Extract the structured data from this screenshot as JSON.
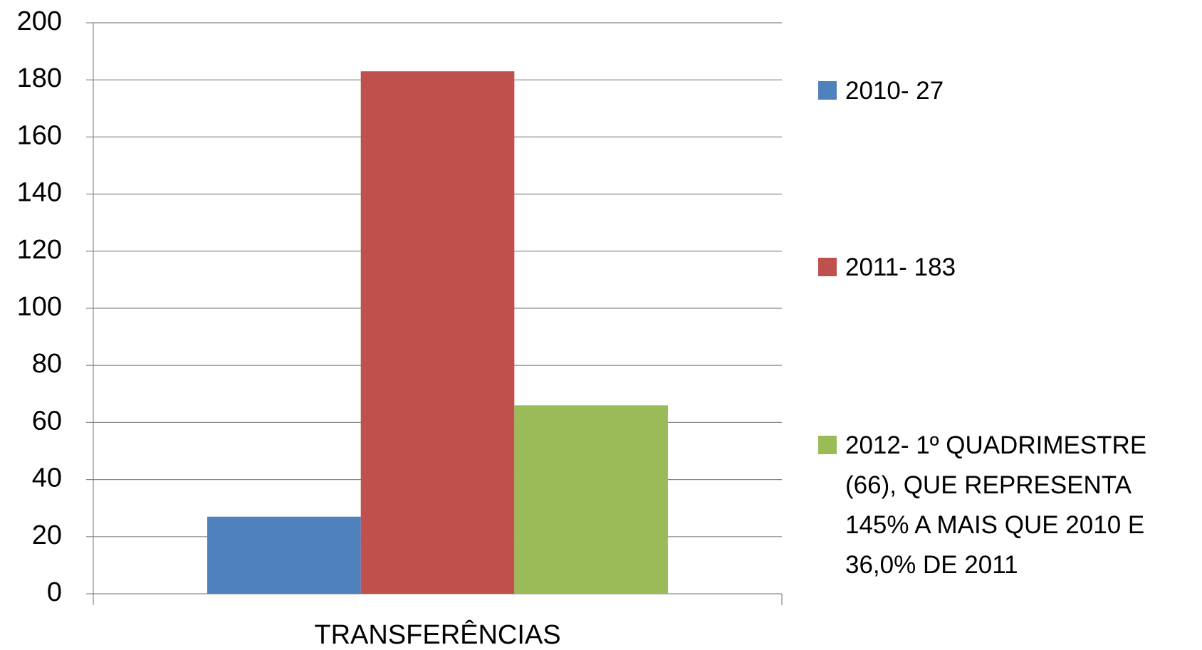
{
  "chart_data": {
    "type": "bar",
    "categories": [
      "TRANSFERÊNCIAS"
    ],
    "series": [
      {
        "name": "2010- 27",
        "color": "#4f81bd",
        "values": [
          27
        ]
      },
      {
        "name": "2011- 183",
        "color": "#c0504d",
        "values": [
          183
        ]
      },
      {
        "name": "2012- 1º QUADRIMESTRE (66), QUE REPRESENTA 145% A MAIS QUE 2010 E 36,0% DE 2011",
        "color": "#9bbb59",
        "values": [
          66
        ]
      }
    ],
    "ylim": [
      0,
      200
    ],
    "yticks": [
      0,
      20,
      40,
      60,
      80,
      100,
      120,
      140,
      160,
      180,
      200
    ],
    "grid": true,
    "legend": "right"
  }
}
